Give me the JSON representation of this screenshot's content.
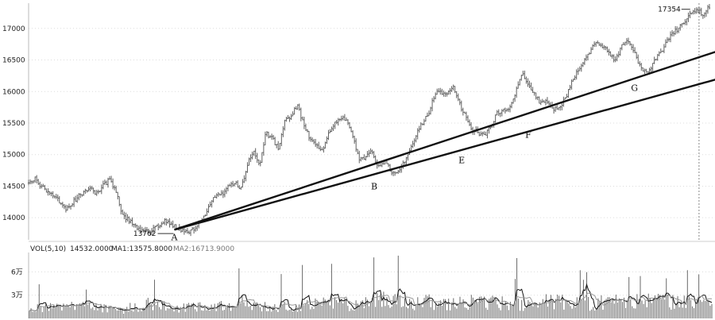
{
  "chart_data": [
    {
      "type": "candlestick",
      "y_ticks": [
        14000,
        14500,
        15000,
        15500,
        16000,
        16500,
        17000
      ],
      "y_tick_labels": [
        "14000",
        "14500",
        "15000",
        "15500",
        "16000",
        "16500",
        "17000"
      ],
      "ylim": [
        13650,
        17400
      ],
      "grid": true,
      "price_path": [
        [
          0,
          14550
        ],
        [
          3,
          14620
        ],
        [
          6,
          14500
        ],
        [
          9,
          14420
        ],
        [
          12,
          14330
        ],
        [
          15,
          14250
        ],
        [
          18,
          14150
        ],
        [
          21,
          14230
        ],
        [
          24,
          14350
        ],
        [
          27,
          14420
        ],
        [
          30,
          14450
        ],
        [
          33,
          14380
        ],
        [
          36,
          14520
        ],
        [
          39,
          14600
        ],
        [
          42,
          14420
        ],
        [
          45,
          14050
        ],
        [
          48,
          13960
        ],
        [
          51,
          13870
        ],
        [
          54,
          13800
        ],
        [
          57,
          13780
        ],
        [
          60,
          13830
        ],
        [
          63,
          13900
        ],
        [
          66,
          13950
        ],
        [
          69,
          13880
        ],
        [
          72,
          13830
        ],
        [
          75,
          13800
        ],
        [
          78,
          13790
        ],
        [
          81,
          13880
        ],
        [
          84,
          13990
        ],
        [
          87,
          14200
        ],
        [
          90,
          14350
        ],
        [
          93,
          14380
        ],
        [
          96,
          14500
        ],
        [
          99,
          14550
        ],
        [
          102,
          14450
        ],
        [
          105,
          14850
        ],
        [
          108,
          15050
        ],
        [
          111,
          14850
        ],
        [
          114,
          15350
        ],
        [
          117,
          15250
        ],
        [
          120,
          15100
        ],
        [
          123,
          15550
        ],
        [
          126,
          15600
        ],
        [
          129,
          15780
        ],
        [
          132,
          15500
        ],
        [
          135,
          15250
        ],
        [
          138,
          15150
        ],
        [
          141,
          15050
        ],
        [
          144,
          15350
        ],
        [
          147,
          15520
        ],
        [
          150,
          15600
        ],
        [
          153,
          15500
        ],
        [
          156,
          15250
        ],
        [
          159,
          14900
        ],
        [
          162,
          14980
        ],
        [
          165,
          15050
        ],
        [
          168,
          14800
        ],
        [
          171,
          14900
        ],
        [
          174,
          14750
        ],
        [
          177,
          14700
        ],
        [
          180,
          14850
        ],
        [
          183,
          15050
        ],
        [
          186,
          15300
        ],
        [
          189,
          15500
        ],
        [
          192,
          15650
        ],
        [
          195,
          15950
        ],
        [
          198,
          16000
        ],
        [
          201,
          15950
        ],
        [
          204,
          16050
        ],
        [
          207,
          15800
        ],
        [
          210,
          15600
        ],
        [
          213,
          15400
        ],
        [
          216,
          15350
        ],
        [
          219,
          15300
        ],
        [
          222,
          15450
        ],
        [
          225,
          15650
        ],
        [
          228,
          15700
        ],
        [
          231,
          15750
        ],
        [
          234,
          16000
        ],
        [
          237,
          16300
        ],
        [
          240,
          16100
        ],
        [
          243,
          15950
        ],
        [
          246,
          15800
        ],
        [
          249,
          15850
        ],
        [
          252,
          15700
        ],
        [
          255,
          15750
        ],
        [
          258,
          15900
        ],
        [
          261,
          16150
        ],
        [
          264,
          16350
        ],
        [
          267,
          16500
        ],
        [
          270,
          16650
        ],
        [
          273,
          16800
        ],
        [
          276,
          16700
        ],
        [
          279,
          16600
        ],
        [
          282,
          16500
        ],
        [
          285,
          16750
        ],
        [
          288,
          16800
        ],
        [
          291,
          16650
        ],
        [
          294,
          16350
        ],
        [
          297,
          16300
        ],
        [
          300,
          16450
        ],
        [
          303,
          16600
        ],
        [
          306,
          16750
        ],
        [
          309,
          16900
        ],
        [
          312,
          17000
        ],
        [
          315,
          17100
        ],
        [
          318,
          17250
        ],
        [
          321,
          17300
        ],
        [
          324,
          17200
        ],
        [
          327,
          17354
        ]
      ],
      "trendlines": [
        {
          "name": "A-G",
          "from": [
            70,
            13810
          ],
          "to": [
            330,
            16630
          ]
        },
        {
          "name": "A-F",
          "from": [
            70,
            13810
          ],
          "to": [
            330,
            16190
          ]
        }
      ],
      "annotations": {
        "points": [
          {
            "label": "A",
            "x": 70,
            "y": 13760
          },
          {
            "label": "B",
            "x": 166,
            "y": 14560
          },
          {
            "label": "E",
            "x": 208,
            "y": 14980
          },
          {
            "label": "F",
            "x": 240,
            "y": 15380
          },
          {
            "label": "G",
            "x": 291,
            "y": 16120
          }
        ],
        "price_labels": [
          {
            "text": "13762",
            "x": 62,
            "y": 13762
          },
          {
            "text": "17354",
            "x": 317,
            "y": 17354
          }
        ]
      },
      "vline_x": 322
    },
    {
      "type": "bar",
      "header": {
        "vol_label": "VOL(5,10)",
        "vol_value": "14532.0000",
        "ma1_label": "MA1:13575.8000",
        "ma2_label": "MA2:16713.9000"
      },
      "y_ticks": [
        3,
        6
      ],
      "y_tick_labels": [
        "3万",
        "6万"
      ],
      "ylim": [
        0,
        8.5
      ],
      "value_profile": [
        1.4,
        1.6,
        1.9,
        1.5,
        1.3,
        2.2,
        1.7,
        1.6,
        1.8,
        2.5,
        1.9,
        1.7,
        2.0,
        2.3,
        1.8,
        2.9,
        2.1,
        2.4,
        2.0,
        2.6,
        2.2,
        2.1,
        2.5,
        2.3,
        2.1,
        2.8,
        2.4,
        2.6,
        2.2,
        2.5
      ]
    }
  ]
}
